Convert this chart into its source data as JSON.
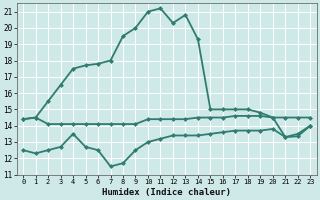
{
  "xlabel": "Humidex (Indice chaleur)",
  "xlim": [
    -0.5,
    23.5
  ],
  "ylim": [
    11,
    21.5
  ],
  "yticks": [
    11,
    12,
    13,
    14,
    15,
    16,
    17,
    18,
    19,
    20,
    21
  ],
  "xticks": [
    0,
    1,
    2,
    3,
    4,
    5,
    6,
    7,
    8,
    9,
    10,
    11,
    12,
    13,
    14,
    15,
    16,
    17,
    18,
    19,
    20,
    21,
    22,
    23
  ],
  "background_color": "#cfe8e8",
  "grid_color": "#ffffff",
  "line_color": "#2e7d6e",
  "line1_x": [
    0,
    1,
    2,
    3,
    4,
    5,
    6,
    7,
    8,
    9,
    10,
    11,
    12,
    13,
    14,
    15,
    16,
    17,
    18,
    19,
    20,
    21,
    22,
    23
  ],
  "line1_y": [
    14.4,
    14.5,
    14.1,
    14.1,
    14.1,
    14.1,
    14.1,
    14.1,
    14.1,
    14.1,
    14.4,
    14.4,
    14.4,
    14.4,
    14.5,
    14.5,
    14.5,
    14.6,
    14.6,
    14.6,
    14.5,
    14.5,
    14.5,
    14.5
  ],
  "line2_x": [
    0,
    1,
    2,
    3,
    4,
    5,
    6,
    7,
    8,
    9,
    10,
    11,
    12,
    13,
    14,
    15,
    16,
    17,
    18,
    19,
    20,
    21,
    22,
    23
  ],
  "line2_y": [
    14.4,
    14.5,
    15.5,
    16.5,
    17.5,
    17.7,
    17.8,
    18.0,
    19.5,
    20.0,
    21.0,
    21.2,
    20.3,
    20.8,
    19.3,
    15.0,
    15.0,
    15.0,
    15.0,
    14.8,
    14.5,
    13.3,
    13.5,
    14.0
  ],
  "line3_x": [
    0,
    1,
    2,
    3,
    4,
    5,
    6,
    7,
    8,
    9,
    10,
    11,
    12,
    13,
    14,
    15,
    16,
    17,
    18,
    19,
    20,
    21,
    22,
    23
  ],
  "line3_y": [
    12.5,
    12.3,
    12.5,
    12.7,
    13.5,
    12.7,
    12.5,
    11.5,
    11.7,
    12.5,
    13.0,
    13.2,
    13.4,
    13.4,
    13.4,
    13.5,
    13.6,
    13.7,
    13.7,
    13.7,
    13.8,
    13.3,
    13.35,
    14.0
  ]
}
